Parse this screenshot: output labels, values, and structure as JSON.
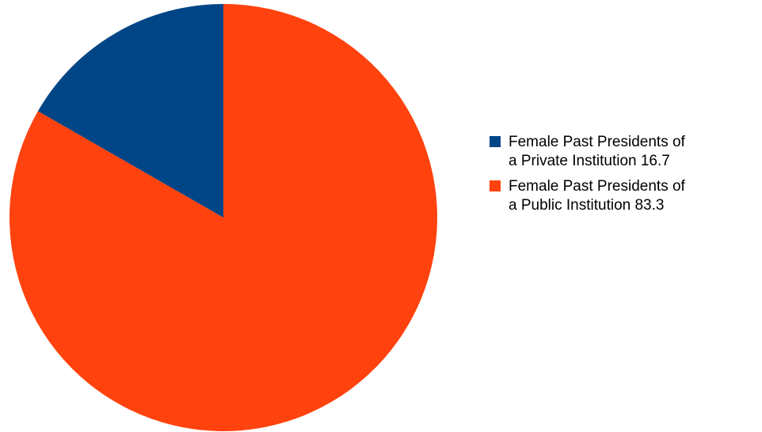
{
  "chart_data": {
    "type": "pie",
    "series": [
      {
        "name": "",
        "values": [
          16.7,
          83.3
        ]
      }
    ],
    "slices": [
      {
        "label_lines": [
          "Female Past Presidents of",
          "a Private Institution 16.7"
        ],
        "value": 16.7,
        "color": "#004586"
      },
      {
        "label_lines": [
          "Female Past Presidents of",
          "a Public Institution  83.3"
        ],
        "value": 83.3,
        "color": "#ff420e"
      }
    ],
    "start_angle": "12 o'clock",
    "direction": "counter-clockwise",
    "legend_position": "right"
  }
}
